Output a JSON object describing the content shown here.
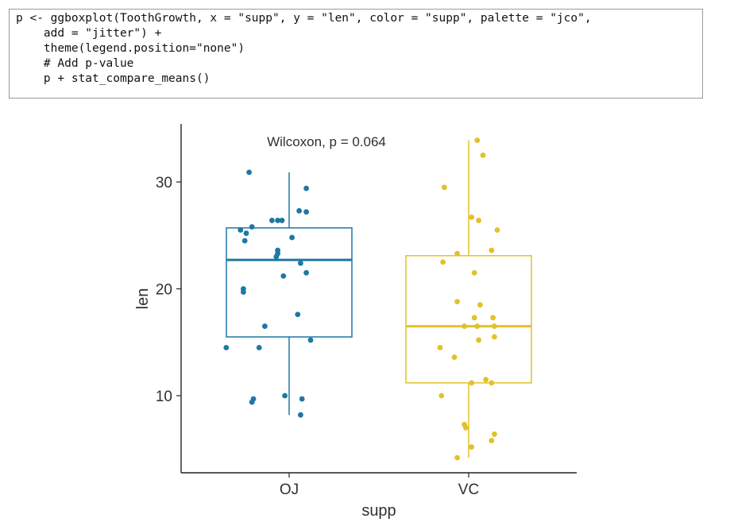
{
  "code": {
    "lines": [
      "p <- ggboxplot(ToothGrowth, x = \"supp\", y = \"len\", color = \"supp\", palette = \"jco\",",
      "    add = \"jitter\") +",
      "    theme(legend.position=\"none\")",
      "",
      "    # Add p-value",
      "    p + stat_compare_means()"
    ]
  },
  "chart_data": {
    "type": "box",
    "xlabel": "supp",
    "ylabel": "len",
    "annotation": "Wilcoxon, p = 0.064",
    "categories": [
      "OJ",
      "VC"
    ],
    "ylim": [
      2.5,
      35
    ],
    "yticks": [
      10,
      20,
      30
    ],
    "grid": false,
    "legend": "none",
    "colors": {
      "OJ": "#1f77a4",
      "VC": "#e2c12a"
    },
    "boxes": [
      {
        "name": "OJ",
        "min": 8.2,
        "q1": 15.5,
        "median": 22.7,
        "q3": 25.7,
        "max": 30.9
      },
      {
        "name": "VC",
        "min": 4.2,
        "q1": 11.2,
        "median": 16.5,
        "q3": 23.1,
        "max": 33.9
      }
    ],
    "points": {
      "OJ": [
        {
          "x": -0.28,
          "y": 30.9
        },
        {
          "x": 0.12,
          "y": 29.4
        },
        {
          "x": 0.07,
          "y": 27.3
        },
        {
          "x": 0.12,
          "y": 27.2
        },
        {
          "x": -0.12,
          "y": 26.4
        },
        {
          "x": -0.05,
          "y": 26.4
        },
        {
          "x": -0.08,
          "y": 26.4
        },
        {
          "x": -0.26,
          "y": 25.8
        },
        {
          "x": -0.34,
          "y": 25.5
        },
        {
          "x": -0.3,
          "y": 25.2
        },
        {
          "x": 0.02,
          "y": 24.8
        },
        {
          "x": -0.31,
          "y": 24.5
        },
        {
          "x": -0.08,
          "y": 23.6
        },
        {
          "x": -0.08,
          "y": 23.3
        },
        {
          "x": -0.09,
          "y": 23.0
        },
        {
          "x": 0.08,
          "y": 22.4
        },
        {
          "x": 0.12,
          "y": 21.5
        },
        {
          "x": -0.04,
          "y": 21.2
        },
        {
          "x": -0.32,
          "y": 20.0
        },
        {
          "x": -0.32,
          "y": 19.7
        },
        {
          "x": 0.06,
          "y": 17.6
        },
        {
          "x": -0.17,
          "y": 16.5
        },
        {
          "x": 0.15,
          "y": 15.2
        },
        {
          "x": -0.44,
          "y": 14.5
        },
        {
          "x": -0.21,
          "y": 14.5
        },
        {
          "x": -0.03,
          "y": 10.0
        },
        {
          "x": -0.25,
          "y": 9.7
        },
        {
          "x": 0.09,
          "y": 9.7
        },
        {
          "x": -0.26,
          "y": 9.4
        },
        {
          "x": 0.08,
          "y": 8.2
        }
      ],
      "VC": [
        {
          "x": 0.06,
          "y": 33.9
        },
        {
          "x": 0.1,
          "y": 32.5
        },
        {
          "x": -0.17,
          "y": 29.5
        },
        {
          "x": 0.02,
          "y": 26.7
        },
        {
          "x": 0.07,
          "y": 26.4
        },
        {
          "x": 0.2,
          "y": 25.5
        },
        {
          "x": 0.16,
          "y": 23.6
        },
        {
          "x": -0.08,
          "y": 23.3
        },
        {
          "x": -0.18,
          "y": 22.5
        },
        {
          "x": 0.04,
          "y": 21.5
        },
        {
          "x": -0.08,
          "y": 18.8
        },
        {
          "x": 0.08,
          "y": 18.5
        },
        {
          "x": 0.04,
          "y": 17.3
        },
        {
          "x": 0.17,
          "y": 17.3
        },
        {
          "x": -0.03,
          "y": 16.5
        },
        {
          "x": 0.06,
          "y": 16.5
        },
        {
          "x": 0.18,
          "y": 16.5
        },
        {
          "x": 0.18,
          "y": 15.5
        },
        {
          "x": 0.07,
          "y": 15.2
        },
        {
          "x": -0.2,
          "y": 14.5
        },
        {
          "x": -0.1,
          "y": 13.6
        },
        {
          "x": 0.12,
          "y": 11.5
        },
        {
          "x": 0.02,
          "y": 11.2
        },
        {
          "x": 0.16,
          "y": 11.2
        },
        {
          "x": -0.19,
          "y": 10.0
        },
        {
          "x": -0.03,
          "y": 7.3
        },
        {
          "x": -0.02,
          "y": 7.0
        },
        {
          "x": 0.18,
          "y": 6.4
        },
        {
          "x": 0.16,
          "y": 5.8
        },
        {
          "x": 0.02,
          "y": 5.2
        },
        {
          "x": -0.08,
          "y": 4.2
        }
      ]
    }
  }
}
